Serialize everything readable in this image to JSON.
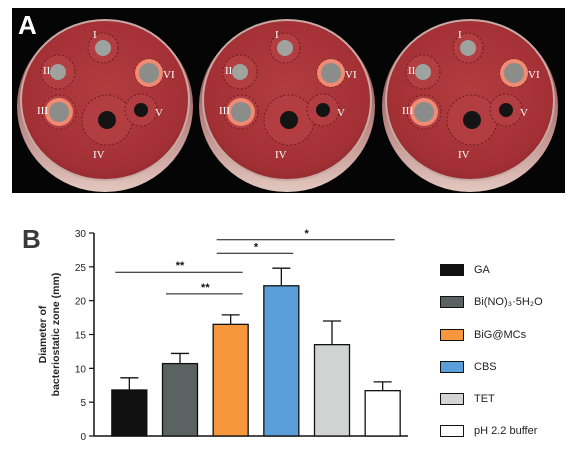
{
  "panel_a": {
    "letter": "A",
    "dish_labels": [
      "I",
      "II",
      "III",
      "IV",
      "V",
      "VI"
    ]
  },
  "panel_b": {
    "letter": "B"
  },
  "chart_data": {
    "type": "bar",
    "title": "",
    "xlabel": "",
    "ylabel": "Diameter of bacteriostatic zone (mm)",
    "ylabel_lines": [
      "Diameter of",
      "bacteriostatic zone (mm)"
    ],
    "ylim": [
      0,
      30
    ],
    "yticks": [
      0,
      5,
      10,
      15,
      20,
      25,
      30
    ],
    "grid": false,
    "legend_position": "right",
    "categories": [
      "GA",
      "Bi(NO)₃·5H₂O",
      "BiG@MCs",
      "CBS",
      "TET",
      "pH 2.2 buffer"
    ],
    "values": [
      6.8,
      10.7,
      16.5,
      22.2,
      13.5,
      6.7
    ],
    "errors": [
      1.8,
      1.5,
      1.4,
      2.6,
      3.5,
      1.3
    ],
    "colors": [
      "#111111",
      "#5b6262",
      "#f6963d",
      "#5b9fd8",
      "#d2d4d4",
      "#ffffff"
    ],
    "significance": [
      {
        "from": 0,
        "to": 2,
        "label": "**",
        "y": 24.2
      },
      {
        "from": 1,
        "to": 2,
        "label": "**",
        "y": 21.0
      },
      {
        "from": 2,
        "to": 3,
        "label": "*",
        "y": 27.0
      },
      {
        "from": 2,
        "to": 5,
        "label": "*",
        "y": 29.0
      }
    ]
  }
}
